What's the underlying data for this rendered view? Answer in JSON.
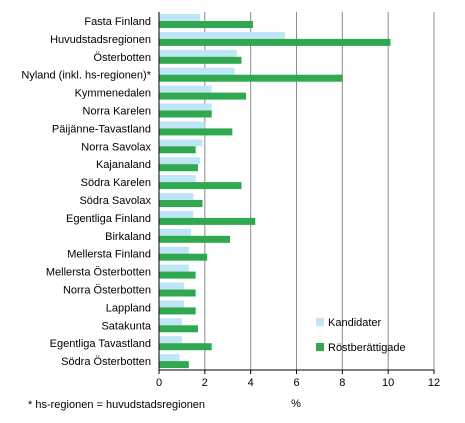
{
  "chart_data": {
    "type": "bar",
    "orientation": "horizontal",
    "categories": [
      "Fasta Finland",
      "Huvudstadsregionen",
      "Österbotten",
      "Nyland (inkl. hs-regionen)*",
      "Kymmenedalen",
      "Norra Karelen",
      "Päijänne-Tavastland",
      "Norra Savolax",
      "Kajanaland",
      "Södra Karelen",
      "Södra Savolax",
      "Egentliga Finland",
      "Birkaland",
      "Mellersta Finland",
      "Mellersta Österbotten",
      "Norra Österbotten",
      "Lappland",
      "Satakunta",
      "Egentliga Tavastland",
      "Södra Österbotten"
    ],
    "series": [
      {
        "name": "Kandidater",
        "color": "#bfe6f7",
        "values": [
          1.8,
          5.5,
          3.4,
          3.3,
          2.3,
          2.3,
          2.0,
          1.9,
          1.8,
          1.6,
          1.5,
          1.5,
          1.4,
          1.3,
          1.3,
          1.1,
          1.1,
          1.0,
          1.0,
          0.9
        ]
      },
      {
        "name": "Röstberättigade",
        "color": "#2fa84f",
        "values": [
          4.1,
          10.1,
          3.6,
          8.0,
          3.8,
          2.3,
          3.2,
          1.6,
          1.7,
          3.6,
          1.9,
          4.2,
          3.1,
          2.1,
          1.6,
          1.6,
          1.6,
          1.7,
          2.3,
          1.3
        ]
      }
    ],
    "x_ticks": [
      "0",
      "2",
      "4",
      "6",
      "8",
      "10",
      "12"
    ],
    "xlim": [
      0,
      12
    ],
    "xlabel": "%",
    "grid": "vertical",
    "legend_position": "bottom-right",
    "footnote": "* hs-regionen = huvudstadsregionen"
  }
}
